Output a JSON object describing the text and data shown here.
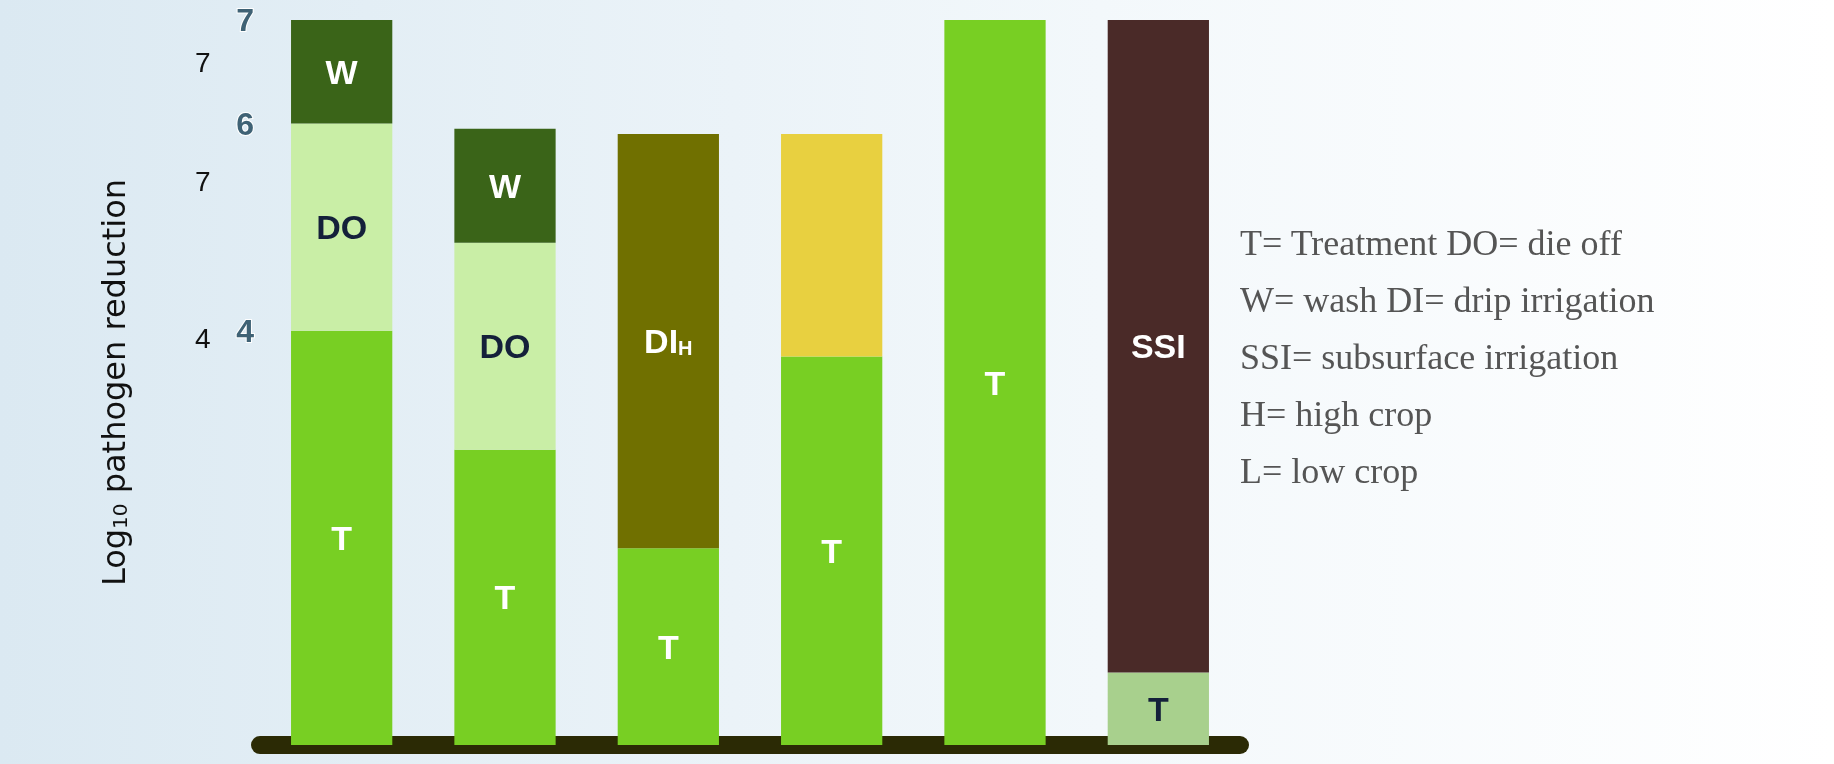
{
  "chart_data": {
    "type": "bar",
    "ylabel": "Log$_{10}$ pathogen reduction",
    "stacked": true,
    "categories": [
      null,
      null,
      null,
      null,
      null,
      null
    ],
    "ylim": [
      0,
      7
    ],
    "yticks": [
      4,
      6,
      7
    ],
    "series": [
      {
        "name": "T",
        "values": [
          4,
          2.85,
          1.9,
          3.75,
          7,
          0.7
        ],
        "colors": [
          "#78cf23",
          "#78cf23",
          "#78cf23",
          "#78cf23",
          "#78cf23",
          "#a8d08d"
        ]
      },
      {
        "name": "DO",
        "color": "#c9eea6",
        "values": [
          2,
          2,
          null,
          null,
          null,
          null
        ]
      },
      {
        "name": "W",
        "color": "#3a6418",
        "values": [
          1,
          1.1,
          null,
          null,
          null,
          null
        ]
      },
      {
        "name": "DI$_{H}$",
        "color": "#707000",
        "values": [
          null,
          null,
          4,
          null,
          null,
          null
        ]
      },
      {
        "color": "#e8d040",
        "values": [
          null,
          null,
          null,
          2.15,
          null,
          null
        ]
      },
      {
        "name": "SSI",
        "color": "#4a2a28",
        "values": [
          null,
          null,
          null,
          null,
          null,
          6.3
        ]
      }
    ],
    "annotations": [
      "7",
      "7",
      "4",
      "T= Treatment DO= die off",
      "W= wash DI= drip irrigation",
      "SSI= subsurface irrigation",
      "H= high crop",
      "L= low crop"
    ]
  }
}
